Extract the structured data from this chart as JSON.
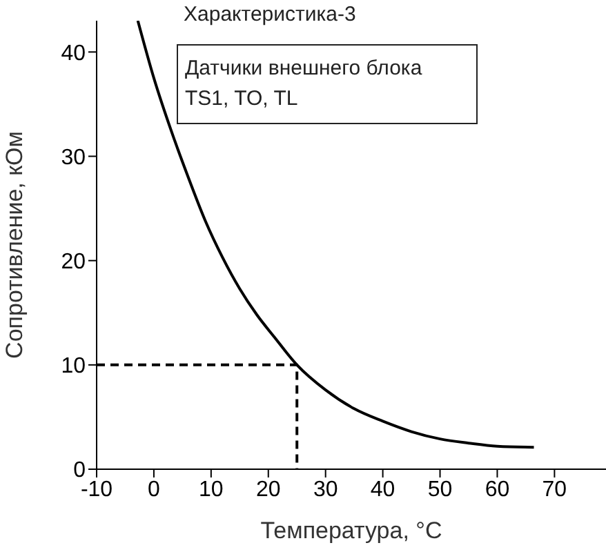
{
  "chart_data": {
    "type": "line",
    "xlabel": "Температура, °C",
    "ylabel": "Сопротивление, кОм",
    "annotations": [
      "Характеристика-3",
      "Датчики внешнего блока TS1, TO, TL"
    ],
    "xlim": [
      -10,
      79
    ],
    "xticks": [
      -10,
      0,
      10,
      20,
      30,
      40,
      50,
      60,
      70
    ],
    "ylim": [
      0,
      43
    ],
    "yticks": [
      0,
      10,
      20,
      30,
      40
    ],
    "grid": false,
    "marker": "none",
    "series": [
      {
        "color": "#000000",
        "line_style": "solid",
        "x": [
          -2.8,
          0,
          3,
          6,
          9,
          12,
          15,
          18,
          21,
          25,
          30,
          35,
          40,
          45,
          50,
          55,
          60,
          66.4
        ],
        "values": [
          43,
          37.5,
          32.5,
          28,
          23.8,
          20.3,
          17.3,
          14.8,
          12.7,
          10,
          7.6,
          5.8,
          4.6,
          3.6,
          2.9,
          2.5,
          2.2,
          2.1
        ]
      },
      {
        "color": "#000000",
        "line_style": "dashed",
        "x": [
          -10,
          25,
          25
        ],
        "values": [
          10,
          10,
          0
        ]
      }
    ]
  }
}
